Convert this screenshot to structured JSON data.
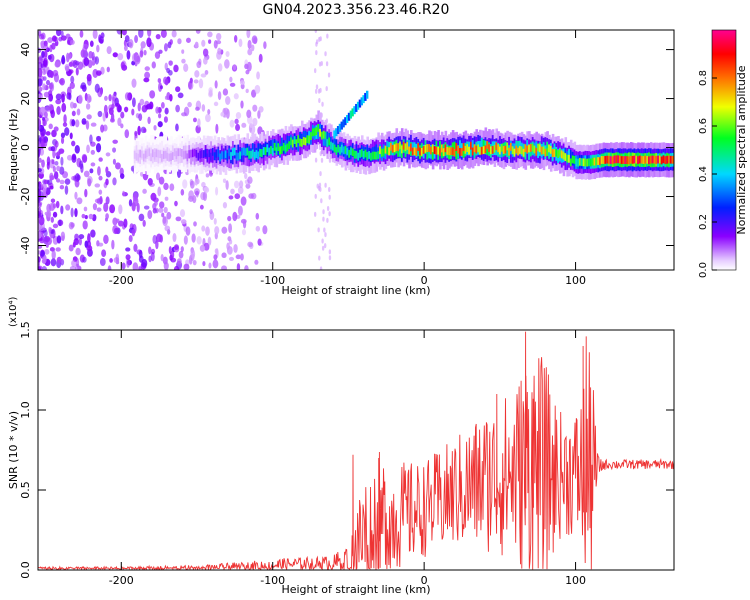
{
  "page": {
    "title": "GN04.2023.356.23.46.R20"
  },
  "chart_data": [
    {
      "type": "heatmap",
      "title": "GN04.2023.356.23.46.R20",
      "xlabel": "Height of straight line (km)",
      "ylabel": "Frequency (Hz)",
      "xlim": [
        -255,
        165
      ],
      "ylim": [
        -50,
        48
      ],
      "x_ticks": [
        -200,
        -100,
        0,
        100
      ],
      "x_tick_labels": [
        "-200",
        "-100",
        "0",
        "100"
      ],
      "y_ticks": [
        -40,
        -20,
        0,
        20,
        40
      ],
      "y_tick_labels": [
        "-40",
        "-20",
        "0",
        "20",
        "40"
      ],
      "colorbar": {
        "label": "Normalized spectral amplitude",
        "range": [
          0,
          1
        ],
        "ticks": [
          0.0,
          0.2,
          0.4,
          0.6,
          0.8
        ],
        "tick_labels": [
          "0.0",
          "0.2",
          "0.4",
          "0.6",
          "0.8"
        ],
        "colormap": [
          "#ffffff",
          "#8a00ff",
          "#0020ff",
          "#00d8ff",
          "#00ff20",
          "#f0ff00",
          "#ff7000",
          "#ff0000",
          "#ff0090"
        ]
      },
      "ridge": {
        "x": [
          -255,
          -160,
          -130,
          -110,
          -95,
          -80,
          -70,
          -60,
          -50,
          -40,
          -30,
          -20,
          0,
          20,
          40,
          60,
          80,
          90,
          100,
          110,
          120,
          165
        ],
        "center_freq": [
          -3,
          -3,
          -3,
          -2,
          0,
          3,
          7,
          0,
          -2,
          -3,
          -2,
          0,
          -1,
          -1,
          0,
          -1,
          -1,
          -3,
          -6,
          -6,
          -5,
          -5
        ],
        "amplitude": [
          0.02,
          0.05,
          0.35,
          0.45,
          0.5,
          0.55,
          0.6,
          0.45,
          0.45,
          0.5,
          0.55,
          0.75,
          0.8,
          0.8,
          0.75,
          0.7,
          0.7,
          0.65,
          0.5,
          0.6,
          0.9,
          0.85
        ]
      }
    },
    {
      "type": "line",
      "xlabel": "Height of straight line (km)",
      "ylabel": "SNR (10 * v/v)",
      "y_scale_note": "(x10⁴)",
      "xlim": [
        -255,
        165
      ],
      "ylim": [
        0,
        1.5
      ],
      "x_ticks": [
        -200,
        -100,
        0,
        100
      ],
      "x_tick_labels": [
        "-200",
        "-100",
        "0",
        "100"
      ],
      "y_ticks": [
        0.0,
        0.5,
        1.0,
        1.5
      ],
      "y_tick_labels": [
        "0.0",
        "0.5",
        "1.0",
        "1.5"
      ],
      "series": [
        {
          "color": "#ee3333",
          "envelope": {
            "x": [
              -255,
              -200,
              -150,
              -120,
              -100,
              -80,
              -60,
              -50,
              -40,
              -30,
              -20,
              0,
              20,
              40,
              60,
              70,
              80,
              90,
              100,
              110,
              115,
              120,
              165
            ],
            "mean": [
              0.01,
              0.01,
              0.01,
              0.02,
              0.03,
              0.04,
              0.04,
              0.07,
              0.22,
              0.3,
              0.33,
              0.38,
              0.48,
              0.56,
              0.6,
              0.66,
              0.6,
              0.6,
              0.6,
              0.6,
              0.65,
              0.66,
              0.66
            ],
            "spread": [
              0.01,
              0.01,
              0.02,
              0.03,
              0.04,
              0.04,
              0.05,
              0.12,
              0.4,
              0.45,
              0.35,
              0.3,
              0.35,
              0.45,
              0.55,
              0.8,
              0.7,
              0.4,
              0.4,
              0.8,
              0.06,
              0.03,
              0.03
            ]
          },
          "peaks": [
            {
              "x": 67,
              "y": 1.49
            },
            {
              "x": 107,
              "y": 1.46
            },
            {
              "x": 105,
              "y": 1.4
            },
            {
              "x": 48,
              "y": 1.1
            },
            {
              "x": 72,
              "y": 1.07
            },
            {
              "x": -47,
              "y": 0.72
            },
            {
              "x": -30,
              "y": 0.7
            }
          ]
        }
      ]
    }
  ]
}
